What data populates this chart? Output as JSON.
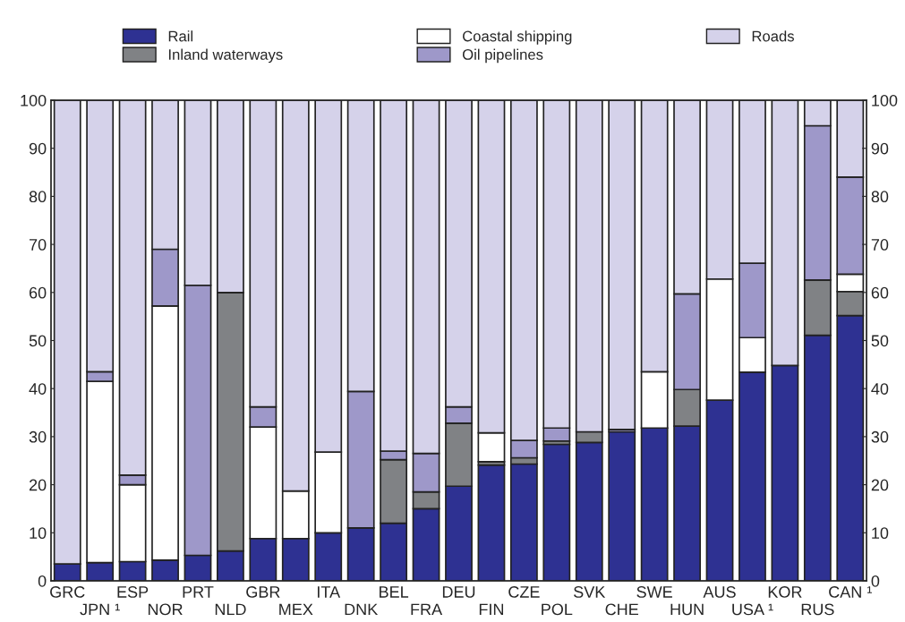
{
  "chart_data": {
    "type": "bar",
    "stacked": true,
    "categories": [
      "GRC",
      "JPN ¹",
      "ESP",
      "NOR",
      "PRT",
      "NLD",
      "GBR",
      "MEX",
      "ITA",
      "DNK",
      "BEL",
      "FRA",
      "DEU",
      "FIN",
      "CZE",
      "POL",
      "SVK",
      "CHE",
      "SWE",
      "HUN",
      "AUS",
      "USA ¹",
      "KOR",
      "RUS",
      "CAN ¹"
    ],
    "series": [
      {
        "name": "Rail",
        "color": "#2e3192",
        "values": [
          3.5,
          3.8,
          4,
          4.3,
          5.3,
          6.2,
          8.8,
          8.8,
          10,
          11,
          12,
          15,
          19.7,
          24.1,
          24.3,
          28.4,
          28.8,
          31,
          31.8,
          32.2,
          37.6,
          43.4,
          44.8,
          51.1,
          55.2
        ]
      },
      {
        "name": "Inland waterways",
        "color": "#808285",
        "values": [
          null,
          null,
          null,
          null,
          null,
          53.8,
          null,
          null,
          null,
          null,
          13.2,
          3.5,
          13.1,
          0.7,
          1.3,
          0.7,
          2.2,
          null,
          null,
          7.6,
          null,
          null,
          null,
          11.5,
          5
        ]
      },
      {
        "name": "Coastal shipping",
        "color": "#ffffff",
        "values": [
          null,
          37.7,
          16,
          52.9,
          null,
          null,
          23.2,
          9.9,
          16.8,
          null,
          null,
          null,
          null,
          6,
          null,
          null,
          null,
          null,
          11.7,
          null,
          25.2,
          7.2,
          null,
          null,
          3.6
        ]
      },
      {
        "name": "Oil pipelines",
        "color": "#9e98c9",
        "values": [
          null,
          2,
          2,
          11.8,
          56.2,
          null,
          4.2,
          null,
          null,
          28.4,
          1.8,
          8,
          3.4,
          null,
          3.6,
          2.7,
          null,
          0.5,
          null,
          19.9,
          null,
          15.5,
          null,
          32.1,
          20.2
        ]
      },
      {
        "name": "Roads",
        "color": "#d5d2ea",
        "values": [
          96.5,
          56.5,
          78,
          31,
          38.5,
          40,
          63.8,
          81.3,
          73.2,
          60.6,
          73,
          73.5,
          63.8,
          69.2,
          70.8,
          68.2,
          69,
          68.5,
          56.5,
          40.3,
          37.2,
          33.9,
          55.2,
          5.3,
          16
        ]
      }
    ],
    "ylim": [
      0,
      100
    ],
    "yticks": [
      0,
      10,
      20,
      30,
      40,
      50,
      60,
      70,
      80,
      90,
      100
    ],
    "y2lim": [
      0,
      100
    ],
    "y2ticks": [
      0,
      10,
      20,
      30,
      40,
      50,
      60,
      70,
      80,
      90,
      100
    ],
    "legend": "top",
    "grid": false
  }
}
